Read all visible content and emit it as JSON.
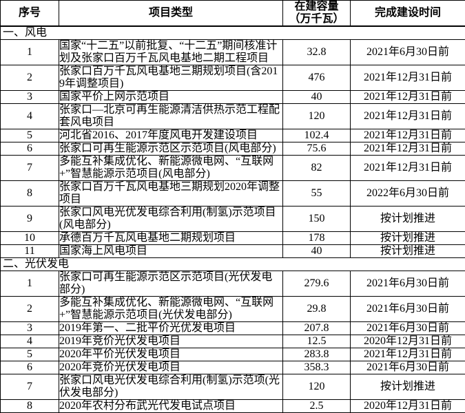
{
  "colors": {
    "background": "#ffffff",
    "text": "#000000",
    "border": "#000000"
  },
  "table": {
    "headers": [
      "序号",
      "项目类型",
      "在建容量\n（万千瓦）",
      "完成建设时间"
    ],
    "sections": [
      {
        "title": "一、风电",
        "rows": [
          {
            "no": "1",
            "project": "国家“十二五”以前批复、“十二五”期间核准计划及张家口百万千瓦风电基地二期工程项目",
            "capacity": "32.8",
            "deadline": "2021年6月30日前"
          },
          {
            "no": "2",
            "project": "张家口百万千瓦风电基地三期规划项目(含2019年调整项目)",
            "capacity": "476",
            "deadline": "2021年12月31日前"
          },
          {
            "no": "3",
            "project": "国家平价上网示范项目",
            "capacity": "40",
            "deadline": "2021年12月31日前"
          },
          {
            "no": "4",
            "project": "张家口—北京可再生能源清洁供热示范工程配套风电项目",
            "capacity": "120",
            "deadline": "2021年12月31日前"
          },
          {
            "no": "5",
            "project": "河北省2016、2017年度风电开发建设项目",
            "capacity": "102.4",
            "deadline": "2021年12月31日前"
          },
          {
            "no": "6",
            "project": "张家口可再生能源示范区示范项目(风电部分)",
            "capacity": "75.6",
            "deadline": "2021年12月31日前"
          },
          {
            "no": "7",
            "project": "多能互补集成优化、新能源微电网、“互联网+”智慧能源示范项目(风电部分)",
            "capacity": "82",
            "deadline": "2021年12月31日前"
          },
          {
            "no": "8",
            "project": "张家口百万千瓦风电基地三期规划2020年调整项目",
            "capacity": "55",
            "deadline": "2022年6月30日前"
          },
          {
            "no": "9",
            "project": "张家口风电光优发电综合利用(制氢)示范项目(风电部分)",
            "capacity": "150",
            "deadline": "按计划推进"
          },
          {
            "no": "10",
            "project": "承德百万千瓦风电基地二期规划项目",
            "capacity": "178",
            "deadline": "按计划推进"
          },
          {
            "no": "11",
            "project": "国家海上风电项目",
            "capacity": "40",
            "deadline": "按计划推进"
          }
        ]
      },
      {
        "title": "二、光伏发电",
        "rows": [
          {
            "no": "1",
            "project": "张家口可再生能源示范区示范项目(光伏发电部分)",
            "capacity": "279.6",
            "deadline": "2021年6月30日前"
          },
          {
            "no": "2",
            "project": "多能互补集成优化、新能源微电网、“互联网+”智慧能源示范项目(光伏发电部分)",
            "capacity": "29.8",
            "deadline": "2021年6月30日前"
          },
          {
            "no": "3",
            "project": "2019年第一、二批平价光优发电项目",
            "capacity": "207.8",
            "deadline": "2021年6月30日前"
          },
          {
            "no": "4",
            "project": "2019年竞价光伏发电项目",
            "capacity": "12.5",
            "deadline": "2020年12月31日前"
          },
          {
            "no": "5",
            "project": "2020年平价光伏发电项目",
            "capacity": "283.8",
            "deadline": "2021年12月31日前"
          },
          {
            "no": "6",
            "project": "2020年竞价光伏发电项目",
            "capacity": "358.3",
            "deadline": "2021年6月30日前"
          },
          {
            "no": "7",
            "project": "张家口风电光伏发电综合利用(制氢)示范项(光伏发电部分)",
            "capacity": "120",
            "deadline": "按计划推进"
          },
          {
            "no": "8",
            "project": "2020年农村分布武光代发电试点项目",
            "capacity": "2.5",
            "deadline": "2020年12月31日前"
          }
        ]
      }
    ]
  }
}
